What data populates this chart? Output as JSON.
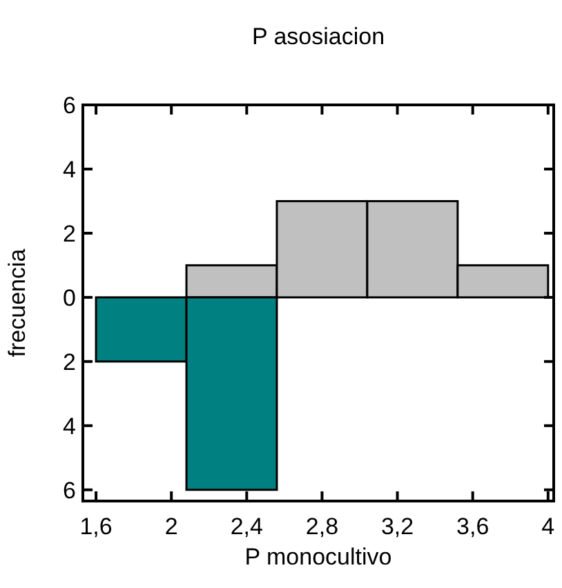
{
  "chart_data": {
    "type": "histogram",
    "title": "P asosiacion",
    "xlabel": "P monocultivo",
    "ylabel": "frecuencia",
    "bins": [
      1.6,
      2.08,
      2.56,
      3.04,
      3.52,
      4.0
    ],
    "series": [
      {
        "color": "#c0c0c0",
        "values": [
          0,
          1,
          3,
          3,
          1
        ]
      },
      {
        "color": "#008080",
        "values": [
          -2,
          -6,
          0,
          0,
          0
        ]
      }
    ],
    "xlim": [
      1.53,
      4.03
    ],
    "xticks": [
      {
        "value": 1.6,
        "label": "1,6"
      },
      2,
      {
        "value": 2.4,
        "label": "2,4"
      },
      {
        "value": 2.8,
        "label": "2,8"
      },
      {
        "value": 3.2,
        "label": "3,2"
      },
      {
        "value": 3.6,
        "label": "3,6"
      },
      4
    ],
    "ylim": [
      -6.35,
      6
    ],
    "yticks": [
      {
        "value": -6,
        "label": "6"
      },
      {
        "value": -4,
        "label": "4"
      },
      {
        "value": -2,
        "label": "2"
      },
      0,
      2,
      4,
      6
    ],
    "grid": false
  }
}
